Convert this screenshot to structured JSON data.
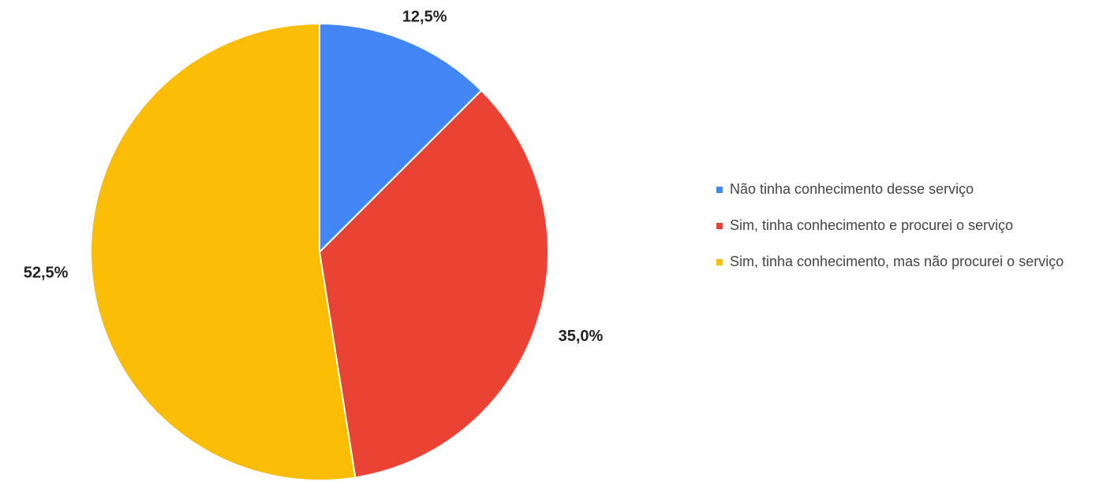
{
  "chart_data": {
    "type": "pie",
    "categories": [
      "Não tinha conhecimento desse serviço",
      "Sim, tinha conhecimento e procurei o serviço",
      "Sim, tinha conhecimento, mas não procurei o serviço"
    ],
    "values": [
      12.5,
      35.0,
      52.5
    ],
    "value_labels": [
      "12,5%",
      "35,0%",
      "52,5%"
    ],
    "colors": [
      "#4285f4",
      "#ea4335",
      "#fbbc04"
    ],
    "legend": "right"
  }
}
